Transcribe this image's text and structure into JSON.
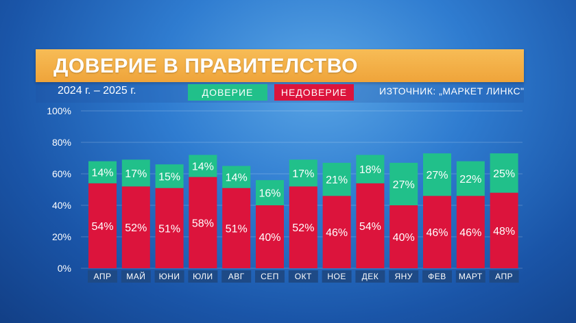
{
  "header": {
    "title": "ДОВЕРИЕ В ПРАВИТЕЛСТВО",
    "period": "2024 г. – 2025 г.",
    "source": "ИЗТОЧНИК: „МАРКЕТ ЛИНКС\""
  },
  "legend": {
    "trust_label": "ДОВЕРИЕ",
    "distrust_label": "НЕДОВЕРИЕ"
  },
  "colors": {
    "trust": "#21c08a",
    "distrust": "#dc143c",
    "title_bar": "#f4b04a",
    "category_tag": "#1e4a86"
  },
  "chart_data": {
    "type": "bar",
    "stacked": true,
    "categories": [
      "АПР",
      "МАЙ",
      "ЮНИ",
      "ЮЛИ",
      "АВГ",
      "СЕП",
      "ОКТ",
      "НОЕ",
      "ДЕК",
      "ЯНУ",
      "ФЕВ",
      "МАРТ",
      "АПР"
    ],
    "series": [
      {
        "name": "НЕДОВЕРИЕ",
        "color": "#dc143c",
        "values": [
          54,
          52,
          51,
          58,
          51,
          40,
          52,
          46,
          54,
          40,
          46,
          46,
          48
        ]
      },
      {
        "name": "ДОВЕРИЕ",
        "color": "#21c08a",
        "values": [
          14,
          17,
          15,
          14,
          14,
          16,
          17,
          21,
          18,
          27,
          27,
          22,
          25
        ]
      }
    ],
    "value_suffix": "%",
    "ylim": [
      0,
      100
    ],
    "yticks": [
      "0%",
      "20%",
      "40%",
      "60%",
      "80%",
      "100%"
    ],
    "grid": true
  }
}
